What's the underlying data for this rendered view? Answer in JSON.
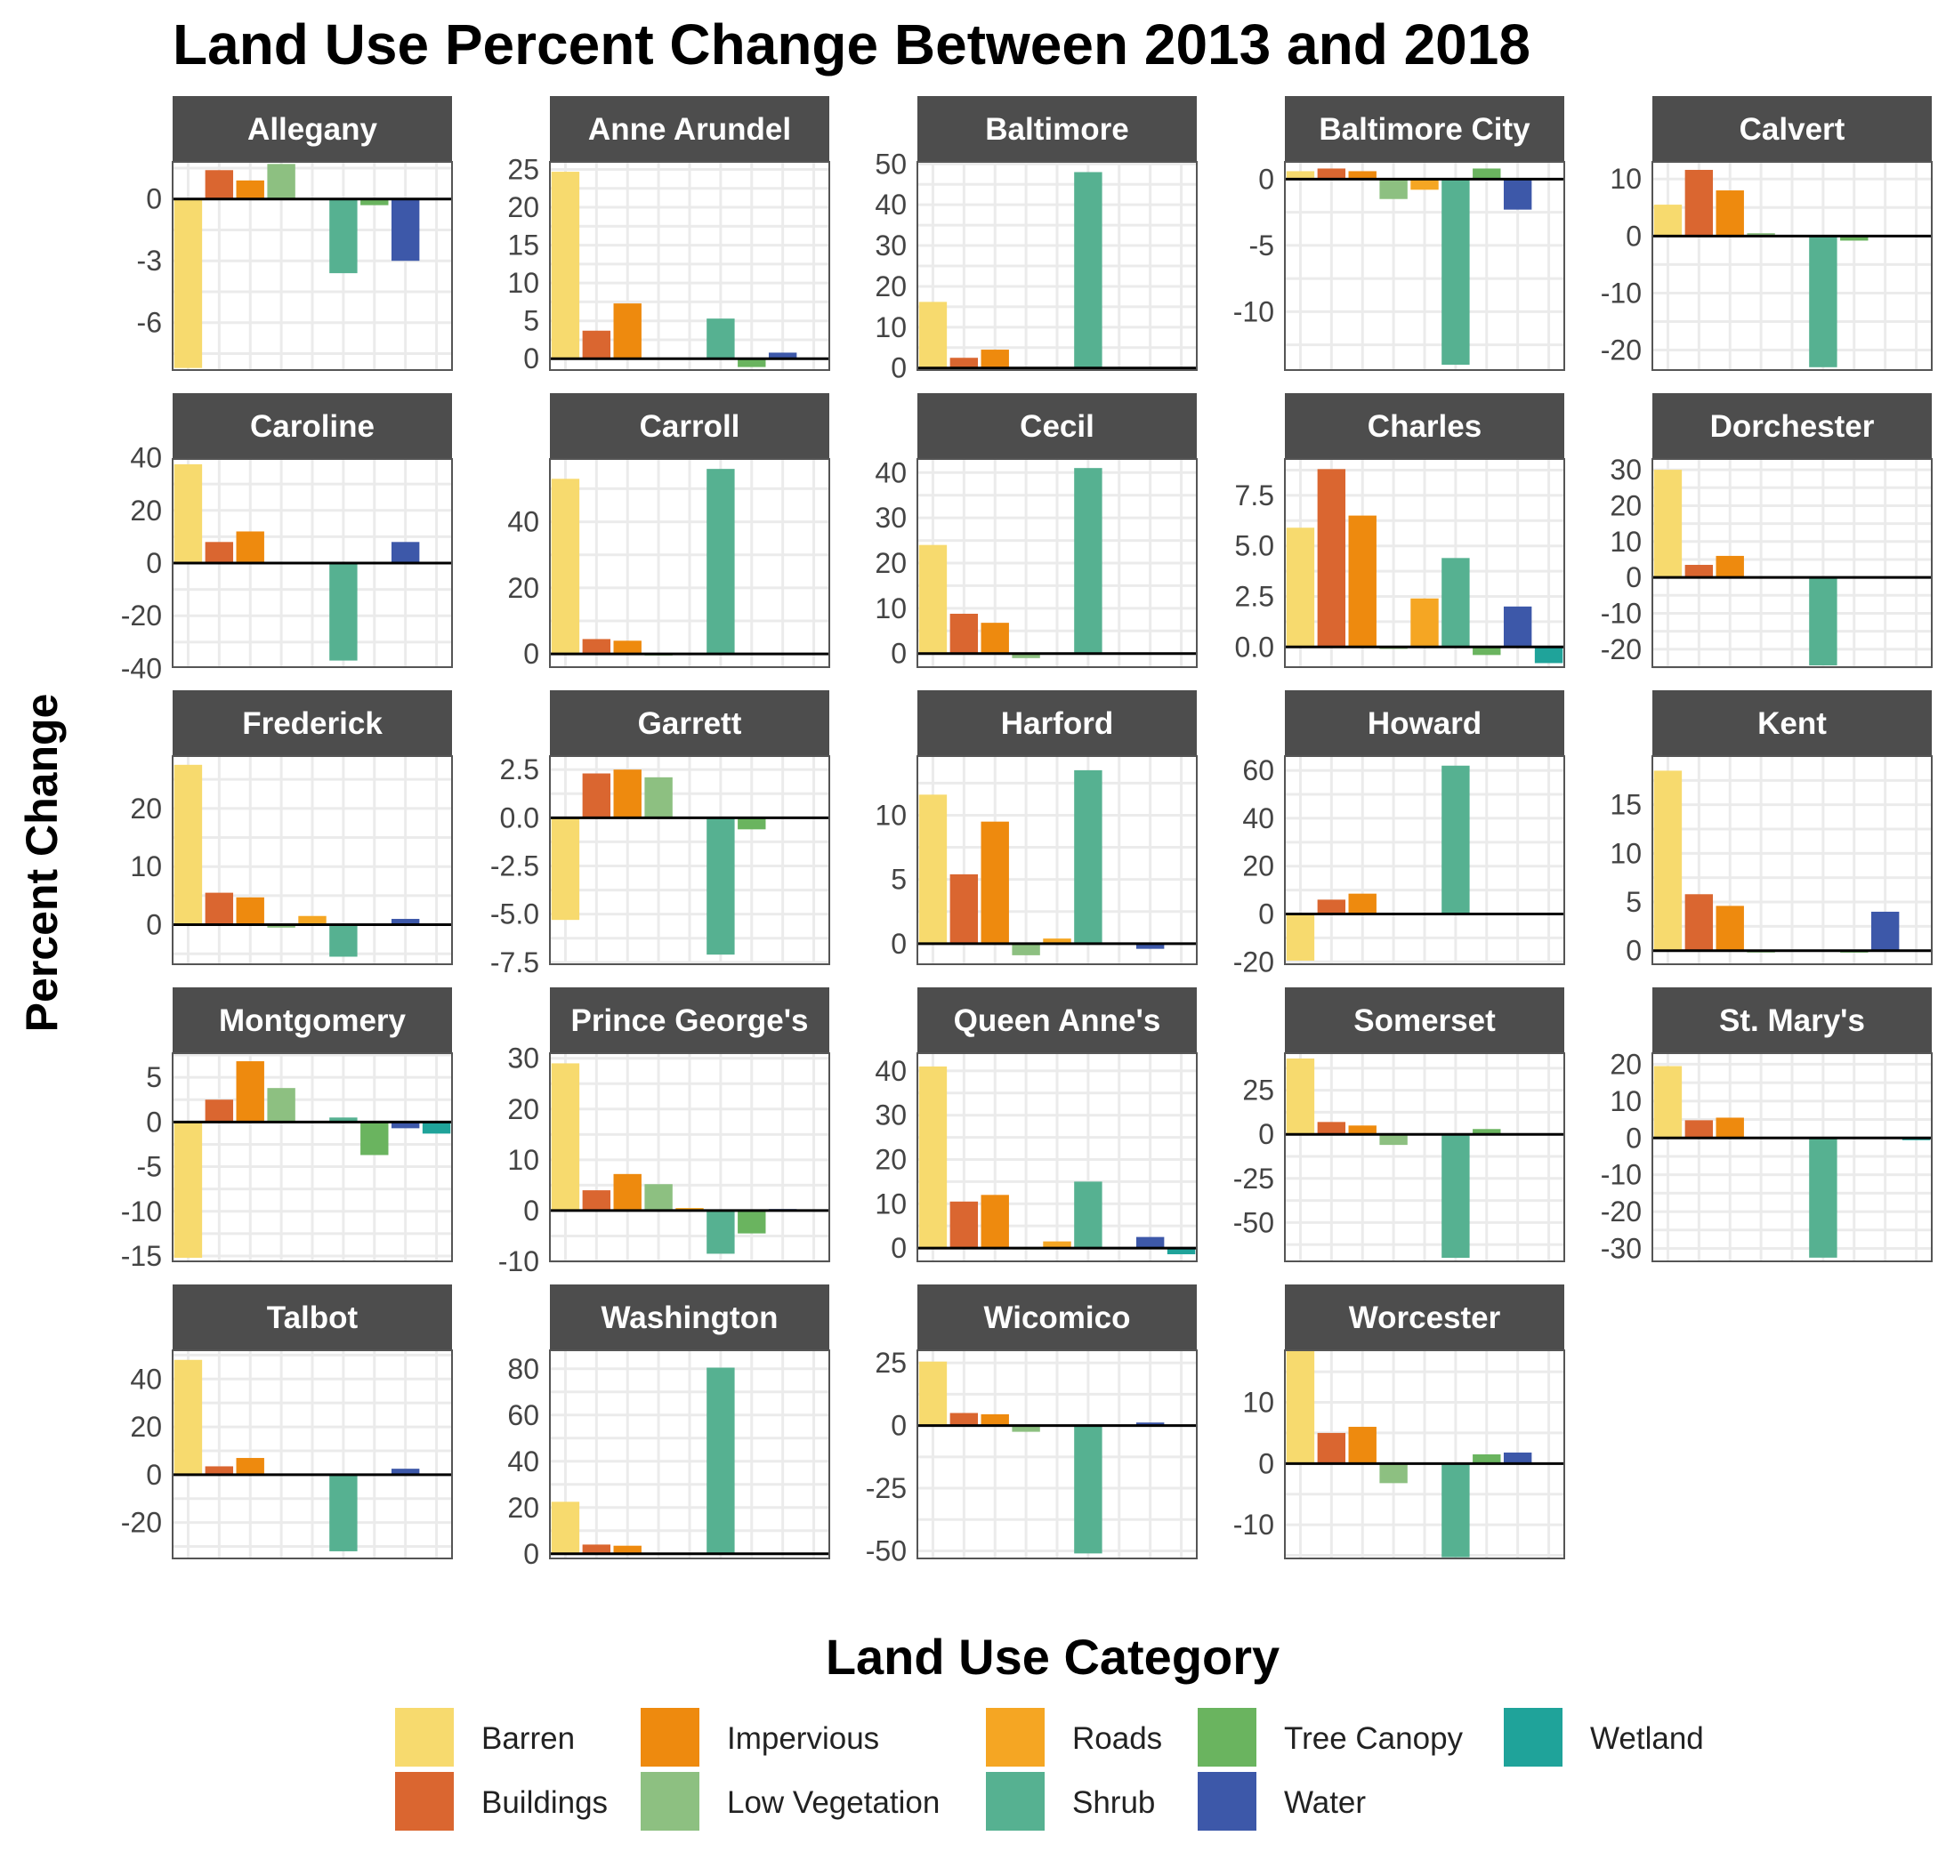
{
  "chart_data": {
    "type": "bar",
    "title": "Land Use Percent Change Between 2013 and 2018",
    "ylabel": "Percent Change",
    "xlabel": "",
    "grid": true,
    "legend": {
      "title": "Land Use Category",
      "position": "bottom",
      "columns": [
        [
          "Barren",
          "Buildings"
        ],
        [
          "Impervious",
          "Low Vegetation"
        ],
        [
          "Roads",
          "Shrub"
        ],
        [
          "Tree Canopy",
          "Water"
        ],
        [
          "Wetland"
        ]
      ]
    },
    "categories": [
      "Barren",
      "Buildings",
      "Impervious",
      "Low Vegetation",
      "Roads",
      "Shrub",
      "Tree Canopy",
      "Water",
      "Wetland"
    ],
    "colors": {
      "Barren": "#F7DA6E",
      "Buildings": "#DA6630",
      "Impervious": "#EE8A0E",
      "Low Vegetation": "#8DC081",
      "Roads": "#F5A623",
      "Shrub": "#56B191",
      "Tree Canopy": "#6AB45F",
      "Water": "#3D58A9",
      "Wetland": "#1FA39A",
      "strip": "#4D4D4D",
      "grid": "#EBEBEB",
      "zero_line": "#000000"
    },
    "facets": [
      {
        "name": "Allegany",
        "ylim": [
          -8.3,
          1.8
        ],
        "ticks": [
          {
            "v": 0,
            "l": "0"
          },
          {
            "v": -3,
            "l": "-3"
          },
          {
            "v": -6,
            "l": "-6"
          }
        ],
        "values": [
          -8.2,
          1.4,
          0.9,
          1.7,
          0,
          -3.6,
          -0.3,
          -3.0,
          null
        ]
      },
      {
        "name": "Anne Arundel",
        "ylim": [
          -1.5,
          26
        ],
        "ticks": [
          {
            "v": 25,
            "l": "25"
          },
          {
            "v": 20,
            "l": "20"
          },
          {
            "v": 15,
            "l": "15"
          },
          {
            "v": 10,
            "l": "10"
          },
          {
            "v": 5,
            "l": "5"
          },
          {
            "v": 0,
            "l": "0"
          }
        ],
        "values": [
          24.7,
          3.7,
          7.3,
          0,
          0,
          5.3,
          -1.1,
          0.8,
          null
        ]
      },
      {
        "name": "Baltimore",
        "ylim": [
          -0.5,
          50.5
        ],
        "ticks": [
          {
            "v": 50,
            "l": "50"
          },
          {
            "v": 40,
            "l": "40"
          },
          {
            "v": 30,
            "l": "30"
          },
          {
            "v": 20,
            "l": "20"
          },
          {
            "v": 10,
            "l": "10"
          },
          {
            "v": 0,
            "l": "0"
          }
        ],
        "values": [
          16.2,
          2.5,
          4.5,
          0,
          0,
          48.0,
          0.2,
          0,
          null
        ]
      },
      {
        "name": "Baltimore City",
        "ylim": [
          -14.4,
          1.3
        ],
        "ticks": [
          {
            "v": 0,
            "l": "0"
          },
          {
            "v": -5,
            "l": "-5"
          },
          {
            "v": -10,
            "l": "-10"
          }
        ],
        "values": [
          0.6,
          0.8,
          0.6,
          -1.5,
          -0.8,
          -14.0,
          0.8,
          -2.3,
          null
        ]
      },
      {
        "name": "Calvert",
        "ylim": [
          -23.5,
          13
        ],
        "ticks": [
          {
            "v": 10,
            "l": "10"
          },
          {
            "v": 0,
            "l": "0"
          },
          {
            "v": -10,
            "l": "-10"
          },
          {
            "v": -20,
            "l": "-20"
          }
        ],
        "values": [
          5.5,
          11.6,
          8.0,
          0.5,
          0,
          -23.0,
          -0.8,
          0,
          null
        ]
      },
      {
        "name": "Caroline",
        "ylim": [
          -39.5,
          39.5
        ],
        "ticks": [
          {
            "v": 40,
            "l": "40"
          },
          {
            "v": 20,
            "l": "20"
          },
          {
            "v": 0,
            "l": "0"
          },
          {
            "v": -20,
            "l": "-20"
          },
          {
            "v": -40,
            "l": "-40"
          }
        ],
        "values": [
          37.5,
          8.0,
          12.0,
          0,
          0,
          -37.0,
          0,
          8.0,
          null
        ]
      },
      {
        "name": "Carroll",
        "ylim": [
          -4,
          59
        ],
        "ticks": [
          {
            "v": 40,
            "l": "40"
          },
          {
            "v": 20,
            "l": "20"
          },
          {
            "v": 0,
            "l": "0"
          }
        ],
        "values": [
          53.0,
          4.5,
          4.0,
          -0.5,
          0,
          56.0,
          0,
          0,
          null
        ]
      },
      {
        "name": "Cecil",
        "ylim": [
          -3,
          43
        ],
        "ticks": [
          {
            "v": 40,
            "l": "40"
          },
          {
            "v": 30,
            "l": "30"
          },
          {
            "v": 20,
            "l": "20"
          },
          {
            "v": 10,
            "l": "10"
          },
          {
            "v": 0,
            "l": "0"
          }
        ],
        "values": [
          24.0,
          8.8,
          6.8,
          -1.0,
          0,
          41.0,
          0,
          0,
          null
        ]
      },
      {
        "name": "Charles",
        "ylim": [
          -1.0,
          9.3
        ],
        "ticks": [
          {
            "v": 7.5,
            "l": "7.5"
          },
          {
            "v": 5.0,
            "l": "5.0"
          },
          {
            "v": 2.5,
            "l": "2.5"
          },
          {
            "v": 0.0,
            "l": "0.0"
          }
        ],
        "values": [
          5.9,
          8.8,
          6.5,
          -0.1,
          2.4,
          4.4,
          -0.4,
          2.0,
          -0.8
        ]
      },
      {
        "name": "Dorchester",
        "ylim": [
          -25,
          33
        ],
        "ticks": [
          {
            "v": 30,
            "l": "30"
          },
          {
            "v": 20,
            "l": "20"
          },
          {
            "v": 10,
            "l": "10"
          },
          {
            "v": 0,
            "l": "0"
          },
          {
            "v": -10,
            "l": "-10"
          },
          {
            "v": -20,
            "l": "-20"
          }
        ],
        "values": [
          30.0,
          3.5,
          6.0,
          0,
          0,
          -24.5,
          0,
          0,
          null
        ]
      },
      {
        "name": "Frederick",
        "ylim": [
          -6.8,
          29
        ],
        "ticks": [
          {
            "v": 20,
            "l": "20"
          },
          {
            "v": 10,
            "l": "10"
          },
          {
            "v": 0,
            "l": "0"
          }
        ],
        "values": [
          27.5,
          5.5,
          4.7,
          -0.5,
          1.5,
          -5.5,
          0,
          1.0,
          null
        ]
      },
      {
        "name": "Garrett",
        "ylim": [
          -7.6,
          3.2
        ],
        "ticks": [
          {
            "v": 2.5,
            "l": "2.5"
          },
          {
            "v": 0.0,
            "l": "0.0"
          },
          {
            "v": -2.5,
            "l": "-2.5"
          },
          {
            "v": -5.0,
            "l": "-5.0"
          },
          {
            "v": -7.5,
            "l": "-7.5"
          }
        ],
        "values": [
          -5.3,
          2.3,
          2.5,
          2.1,
          0,
          -7.1,
          -0.6,
          0,
          null
        ]
      },
      {
        "name": "Harford",
        "ylim": [
          -1.6,
          14.6
        ],
        "ticks": [
          {
            "v": 10,
            "l": "10"
          },
          {
            "v": 5,
            "l": "5"
          },
          {
            "v": 0,
            "l": "0"
          }
        ],
        "values": [
          11.6,
          5.4,
          9.5,
          -0.9,
          0.4,
          13.5,
          0,
          -0.4,
          null
        ]
      },
      {
        "name": "Howard",
        "ylim": [
          -21,
          66
        ],
        "ticks": [
          {
            "v": 60,
            "l": "60"
          },
          {
            "v": 40,
            "l": "40"
          },
          {
            "v": 20,
            "l": "20"
          },
          {
            "v": 0,
            "l": "0"
          },
          {
            "v": -20,
            "l": "-20"
          }
        ],
        "values": [
          -19.5,
          6.0,
          8.5,
          0,
          0,
          62.0,
          -0.5,
          0,
          null
        ]
      },
      {
        "name": "Kent",
        "ylim": [
          -1.4,
          20
        ],
        "ticks": [
          {
            "v": 15,
            "l": "15"
          },
          {
            "v": 10,
            "l": "10"
          },
          {
            "v": 5,
            "l": "5"
          },
          {
            "v": 0,
            "l": "0"
          }
        ],
        "values": [
          18.5,
          5.8,
          4.6,
          -0.2,
          0,
          0,
          -0.2,
          4.0,
          null
        ]
      },
      {
        "name": "Montgomery",
        "ylim": [
          -15.6,
          7.7
        ],
        "ticks": [
          {
            "v": 5,
            "l": "5"
          },
          {
            "v": 0,
            "l": "0"
          },
          {
            "v": -5,
            "l": "-5"
          },
          {
            "v": -10,
            "l": "-10"
          },
          {
            "v": -15,
            "l": "-15"
          }
        ],
        "values": [
          -15.2,
          2.5,
          6.8,
          3.8,
          0,
          0.5,
          -3.7,
          -0.7,
          -1.3
        ]
      },
      {
        "name": "Prince George's",
        "ylim": [
          -10,
          31
        ],
        "ticks": [
          {
            "v": 30,
            "l": "30"
          },
          {
            "v": 20,
            "l": "20"
          },
          {
            "v": 10,
            "l": "10"
          },
          {
            "v": 0,
            "l": "0"
          },
          {
            "v": -10,
            "l": "-10"
          }
        ],
        "values": [
          29.0,
          4.0,
          7.2,
          5.2,
          0.5,
          -8.5,
          -4.5,
          0.3,
          null
        ]
      },
      {
        "name": "Queen Anne's",
        "ylim": [
          -3,
          44
        ],
        "ticks": [
          {
            "v": 40,
            "l": "40"
          },
          {
            "v": 30,
            "l": "30"
          },
          {
            "v": 20,
            "l": "20"
          },
          {
            "v": 10,
            "l": "10"
          },
          {
            "v": 0,
            "l": "0"
          }
        ],
        "values": [
          41.0,
          10.5,
          12.0,
          -0.3,
          1.5,
          15.0,
          0,
          2.5,
          -1.4
        ]
      },
      {
        "name": "Somerset",
        "ylim": [
          -72,
          46
        ],
        "ticks": [
          {
            "v": 25,
            "l": "25"
          },
          {
            "v": 0,
            "l": "0"
          },
          {
            "v": -25,
            "l": "-25"
          },
          {
            "v": -50,
            "l": "-50"
          }
        ],
        "values": [
          43.0,
          7.0,
          5.0,
          -6.0,
          0,
          -70.0,
          3.0,
          0,
          null
        ]
      },
      {
        "name": "St. Mary's",
        "ylim": [
          -33.5,
          23
        ],
        "ticks": [
          {
            "v": 20,
            "l": "20"
          },
          {
            "v": 10,
            "l": "10"
          },
          {
            "v": 0,
            "l": "0"
          },
          {
            "v": -10,
            "l": "-10"
          },
          {
            "v": -20,
            "l": "-20"
          },
          {
            "v": -30,
            "l": "-30"
          }
        ],
        "values": [
          19.5,
          4.8,
          5.5,
          -0.3,
          0,
          -32.5,
          0,
          0.3,
          -0.6
        ]
      },
      {
        "name": "Talbot",
        "ylim": [
          -35,
          52
        ],
        "ticks": [
          {
            "v": 40,
            "l": "40"
          },
          {
            "v": 20,
            "l": "20"
          },
          {
            "v": 0,
            "l": "0"
          },
          {
            "v": -20,
            "l": "-20"
          }
        ],
        "values": [
          48.0,
          3.5,
          7.0,
          0,
          0,
          -32.0,
          0,
          2.5,
          null
        ]
      },
      {
        "name": "Washington",
        "ylim": [
          -2,
          88
        ],
        "ticks": [
          {
            "v": 80,
            "l": "80"
          },
          {
            "v": 60,
            "l": "60"
          },
          {
            "v": 40,
            "l": "40"
          },
          {
            "v": 20,
            "l": "20"
          },
          {
            "v": 0,
            "l": "0"
          }
        ],
        "values": [
          22.5,
          4.0,
          3.5,
          0,
          0,
          80.5,
          0,
          0,
          null
        ]
      },
      {
        "name": "Wicomico",
        "ylim": [
          -53,
          30
        ],
        "ticks": [
          {
            "v": 25,
            "l": "25"
          },
          {
            "v": 0,
            "l": "0"
          },
          {
            "v": -25,
            "l": "-25"
          },
          {
            "v": -50,
            "l": "-50"
          }
        ],
        "values": [
          25.5,
          5.0,
          4.5,
          -2.5,
          0,
          -51.0,
          0,
          1.2,
          null
        ]
      },
      {
        "name": "Worcester",
        "ylim": [
          -15.5,
          18.5
        ],
        "ticks": [
          {
            "v": 10,
            "l": "10"
          },
          {
            "v": 0,
            "l": "0"
          },
          {
            "v": -10,
            "l": "-10"
          }
        ],
        "values": [
          18.5,
          5.0,
          6.0,
          -3.2,
          0,
          -15.3,
          1.5,
          1.8,
          null
        ]
      }
    ]
  }
}
